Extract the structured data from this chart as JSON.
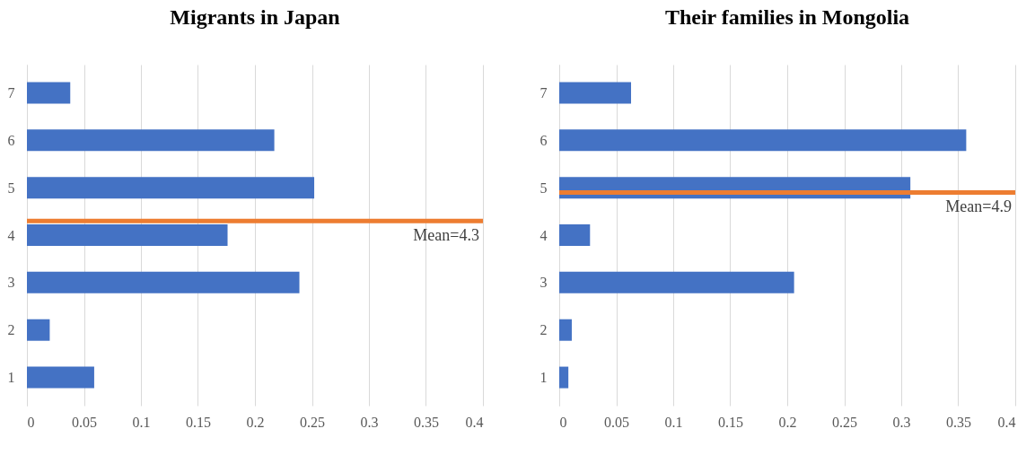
{
  "chart_data": [
    {
      "type": "bar",
      "orientation": "horizontal",
      "title": "Migrants in Japan",
      "x": [
        7,
        6,
        5,
        4,
        3,
        2,
        1
      ],
      "values": [
        0.038,
        0.217,
        0.252,
        0.176,
        0.239,
        0.02,
        0.059
      ],
      "color": "#4472c4",
      "xlim": [
        0,
        0.4
      ],
      "xticks": [
        0,
        0.05,
        0.1,
        0.15,
        0.2,
        0.25,
        0.3,
        0.35,
        0.4
      ],
      "ylim": [
        0.5,
        7.5
      ],
      "yticks": [
        1,
        2,
        3,
        4,
        5,
        6,
        7
      ],
      "grid": "x",
      "ref_lines": [
        {
          "axis": "y",
          "value": 4.3,
          "label": "Mean=4.3",
          "color": "#ed7d31"
        }
      ]
    },
    {
      "type": "bar",
      "orientation": "horizontal",
      "title": "Their families in Mongolia",
      "x": [
        7,
        6,
        5,
        4,
        3,
        2,
        1
      ],
      "values": [
        0.063,
        0.357,
        0.308,
        0.027,
        0.206,
        0.011,
        0.008
      ],
      "color": "#4472c4",
      "xlim": [
        0,
        0.4
      ],
      "xticks": [
        0,
        0.05,
        0.1,
        0.15,
        0.2,
        0.25,
        0.3,
        0.35,
        0.4
      ],
      "ylim": [
        0.5,
        7.5
      ],
      "yticks": [
        1,
        2,
        3,
        4,
        5,
        6,
        7
      ],
      "grid": "x",
      "ref_lines": [
        {
          "axis": "y",
          "value": 4.9,
          "label": "Mean=4.9",
          "color": "#ed7d31"
        }
      ]
    }
  ]
}
